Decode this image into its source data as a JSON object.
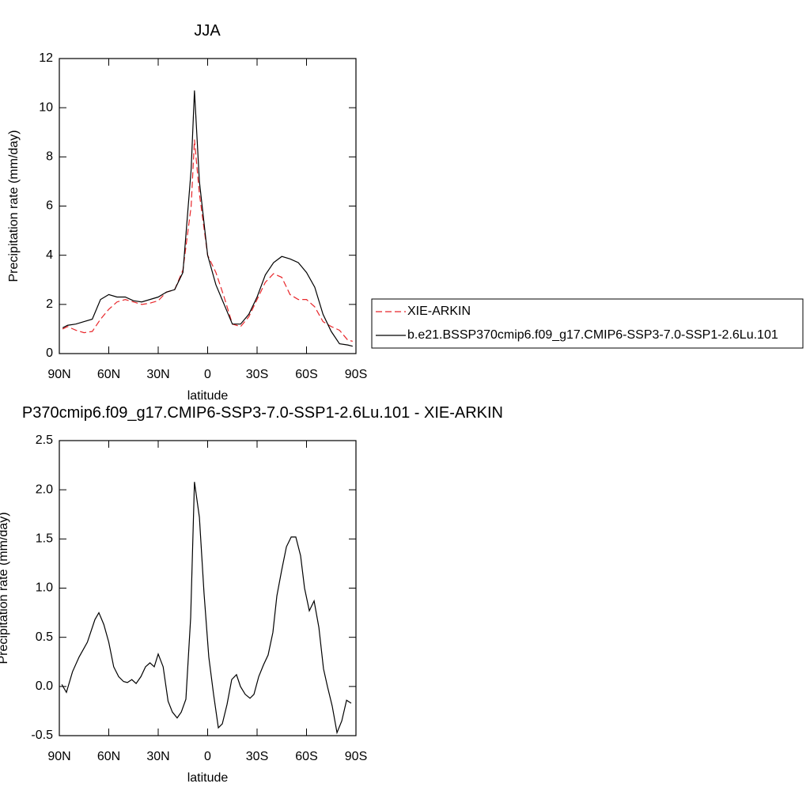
{
  "chart_data": [
    {
      "type": "line",
      "title": "JJA",
      "xlabel": "latitude",
      "ylabel": "Precipitation rate (mm/day)",
      "x": [
        88,
        85,
        80,
        75,
        70,
        65,
        60,
        55,
        50,
        45,
        40,
        35,
        30,
        25,
        20,
        15,
        10,
        8,
        5,
        0,
        -5,
        -10,
        -15,
        -20,
        -25,
        -30,
        -35,
        -40,
        -45,
        -50,
        -55,
        -60,
        -65,
        -70,
        -75,
        -80,
        -85,
        -88
      ],
      "series": [
        {
          "name": "XIE-ARKIN",
          "color": "#e8262a",
          "dash": true,
          "values": [
            1.0,
            1.1,
            0.95,
            0.85,
            0.9,
            1.4,
            1.8,
            2.1,
            2.2,
            2.1,
            2.0,
            2.05,
            2.15,
            2.5,
            2.6,
            3.4,
            6.0,
            8.7,
            6.5,
            4.0,
            3.3,
            2.3,
            1.2,
            1.1,
            1.5,
            2.2,
            2.9,
            3.25,
            3.1,
            2.4,
            2.2,
            2.2,
            1.9,
            1.3,
            1.1,
            0.95,
            0.55,
            0.5
          ]
        },
        {
          "name": "b.e21.BSSP370cmip6.f09_g17.CMIP6-SSP3-7.0-SSP1-2.6Lu.101",
          "color": "#000000",
          "dash": false,
          "values": [
            1.05,
            1.15,
            1.2,
            1.3,
            1.4,
            2.2,
            2.4,
            2.3,
            2.3,
            2.15,
            2.1,
            2.2,
            2.3,
            2.5,
            2.6,
            3.3,
            7.5,
            10.7,
            7.0,
            4.0,
            2.8,
            2.0,
            1.2,
            1.2,
            1.6,
            2.3,
            3.2,
            3.7,
            3.95,
            3.85,
            3.7,
            3.3,
            2.7,
            1.6,
            0.9,
            0.4,
            0.35,
            0.3
          ]
        }
      ],
      "xlim": [
        90,
        -90
      ],
      "xticks": [
        {
          "value": 90,
          "label": "90N"
        },
        {
          "value": 60,
          "label": "60N"
        },
        {
          "value": 30,
          "label": "30N"
        },
        0,
        {
          "value": -30,
          "label": "30S"
        },
        {
          "value": -60,
          "label": "60S"
        },
        {
          "value": -90,
          "label": "90S"
        }
      ],
      "ylim": [
        0,
        12
      ],
      "yticks": [
        0,
        2,
        4,
        6,
        8,
        10,
        12
      ],
      "legend": "right"
    },
    {
      "type": "line",
      "title": "P370cmip6.f09_g17.CMIP6-SSP3-7.0-SSP1-2.6Lu.101 - XIE-ARKIN",
      "xlabel": "latitude",
      "ylabel": "Precipitation rate (mm/day)",
      "x": [
        88.5,
        85.7,
        82,
        78,
        73,
        68.4,
        66,
        63,
        60,
        57,
        54,
        51,
        48.7,
        46,
        43.4,
        40.5,
        37.7,
        35,
        32.4,
        30,
        27,
        24,
        21.4,
        18.5,
        16,
        13.2,
        10.3,
        8,
        5,
        2.2,
        -0.7,
        -3.6,
        -6.5,
        -8.9,
        -11.8,
        -14.6,
        -17.5,
        -19.9,
        -22.8,
        -25.7,
        -28.1,
        -31,
        -33.9,
        -36.7,
        -39.6,
        -42,
        -44.9,
        -47.8,
        -50.7,
        -53.5,
        -56.4,
        -58.8,
        -61.7,
        -64.6,
        -67.5,
        -70.3,
        -72.7,
        -75.6,
        -78.5,
        -81.4,
        -84.3,
        -87.1
      ],
      "series": [
        {
          "color": "#000000",
          "dash": false,
          "values": [
            0.02,
            -0.06,
            0.15,
            0.3,
            0.45,
            0.68,
            0.75,
            0.63,
            0.45,
            0.2,
            0.1,
            0.05,
            0.04,
            0.07,
            0.03,
            0.1,
            0.2,
            0.24,
            0.2,
            0.33,
            0.2,
            -0.15,
            -0.26,
            -0.32,
            -0.26,
            -0.13,
            0.7,
            2.08,
            1.72,
            0.95,
            0.3,
            -0.08,
            -0.42,
            -0.38,
            -0.18,
            0.07,
            0.12,
            0.0,
            -0.08,
            -0.12,
            -0.08,
            0.1,
            0.22,
            0.32,
            0.55,
            0.92,
            1.18,
            1.42,
            1.52,
            1.52,
            1.33,
            1.0,
            0.77,
            0.87,
            0.6,
            0.18,
            0.0,
            -0.2,
            -0.47,
            -0.35,
            -0.14,
            -0.17
          ]
        }
      ],
      "xlim": [
        90,
        -90
      ],
      "xticks": [
        {
          "value": 90,
          "label": "90N"
        },
        {
          "value": 60,
          "label": "60N"
        },
        {
          "value": 30,
          "label": "30N"
        },
        0,
        {
          "value": -30,
          "label": "30S"
        },
        {
          "value": -60,
          "label": "60S"
        },
        {
          "value": -90,
          "label": "90S"
        }
      ],
      "ylim": [
        -0.5,
        2.5
      ],
      "yticks": [
        -0.5,
        {
          "value": 0,
          "label": "0.0"
        },
        0.5,
        {
          "value": 1,
          "label": "1.0"
        },
        1.5,
        {
          "value": 2,
          "label": "2.0"
        },
        2.5
      ]
    }
  ]
}
